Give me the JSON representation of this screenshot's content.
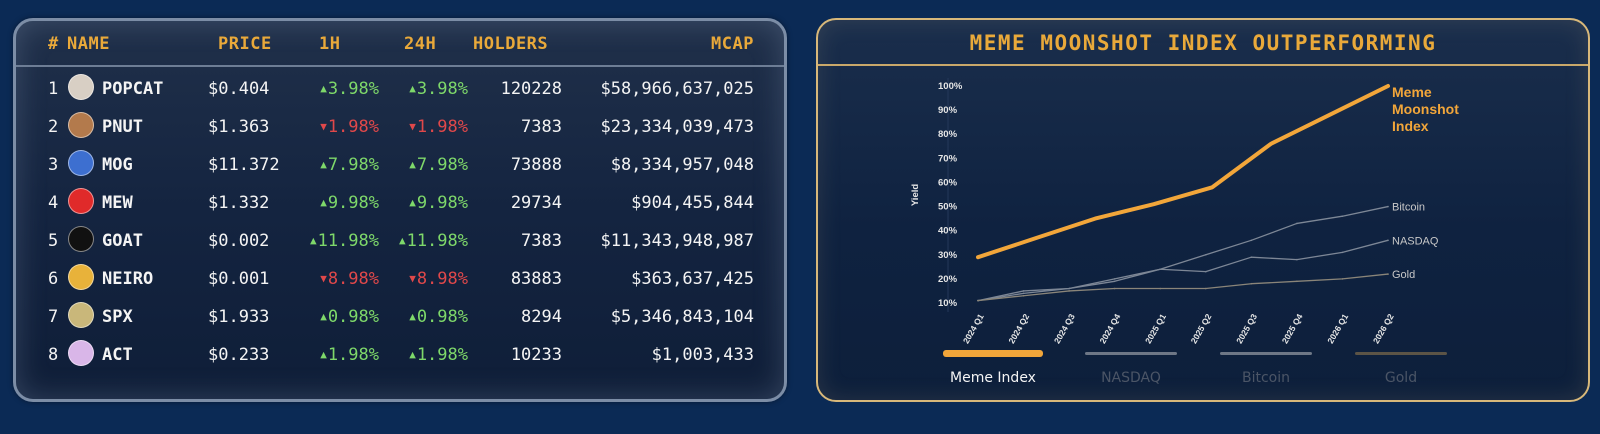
{
  "table": {
    "headers": {
      "rank": "#",
      "name": "NAME",
      "price": "PRICE",
      "h1": "1H",
      "h24": "24H",
      "holders": "HOLDERS",
      "mcap": "MCAP"
    },
    "rows": [
      {
        "rank": "1",
        "name": "POPCAT",
        "price": "$0.404",
        "h1": "3.98%",
        "h1_dir": "up",
        "h24": "3.98%",
        "h24_dir": "up",
        "holders": "120228",
        "mcap": "$58,966,637,025",
        "avatar": "popcat-avatar",
        "avatar_color": "#d8cfc4"
      },
      {
        "rank": "2",
        "name": "PNUT",
        "price": "$1.363",
        "h1": "1.98%",
        "h1_dir": "down",
        "h24": "1.98%",
        "h24_dir": "down",
        "holders": "7383",
        "mcap": "$23,334,039,473",
        "avatar": "pnut-avatar",
        "avatar_color": "#b37a4c"
      },
      {
        "rank": "3",
        "name": "MOG",
        "price": "$11.372",
        "h1": "7.98%",
        "h1_dir": "up",
        "h24": "7.98%",
        "h24_dir": "up",
        "holders": "73888",
        "mcap": "$8,334,957,048",
        "avatar": "mog-avatar",
        "avatar_color": "#3d6fd0"
      },
      {
        "rank": "4",
        "name": "MEW",
        "price": "$1.332",
        "h1": "9.98%",
        "h1_dir": "up",
        "h24": "9.98%",
        "h24_dir": "up",
        "holders": "29734",
        "mcap": "$904,455,844",
        "avatar": "mew-avatar",
        "avatar_color": "#e02a2a"
      },
      {
        "rank": "5",
        "name": "GOAT",
        "price": "$0.002",
        "h1": "11.98%",
        "h1_dir": "up",
        "h24": "11.98%",
        "h24_dir": "up",
        "holders": "7383",
        "mcap": "$11,343,948,987",
        "avatar": "goat-avatar",
        "avatar_color": "#111111"
      },
      {
        "rank": "6",
        "name": "NEIRO",
        "price": "$0.001",
        "h1": "8.98%",
        "h1_dir": "down",
        "h24": "8.98%",
        "h24_dir": "down",
        "holders": "83883",
        "mcap": "$363,637,425",
        "avatar": "neiro-avatar",
        "avatar_color": "#e8b23a"
      },
      {
        "rank": "7",
        "name": "SPX",
        "price": "$1.933",
        "h1": "0.98%",
        "h1_dir": "up",
        "h24": "0.98%",
        "h24_dir": "up",
        "holders": "8294",
        "mcap": "$5,346,843,104",
        "avatar": "spx-avatar",
        "avatar_color": "#c9b77a"
      },
      {
        "rank": "8",
        "name": "ACT",
        "price": "$0.233",
        "h1": "1.98%",
        "h1_dir": "up",
        "h24": "1.98%",
        "h24_dir": "up",
        "holders": "10233",
        "mcap": "$1,003,433",
        "avatar": "act-avatar",
        "avatar_color": "#d9b6e8"
      }
    ]
  },
  "colors": {
    "accent": "#e9a93a",
    "up": "#7ed86a",
    "down": "#e0484a"
  },
  "chart_panel": {
    "title": "MEME MOONSHOT INDEX OUTPERFORMING"
  },
  "legend": [
    {
      "label": "Meme Index",
      "color": "#f2a63a",
      "label_color": "#f4f4f4"
    },
    {
      "label": "NASDAQ",
      "color": "#6e7786",
      "label_color": "#4b5566"
    },
    {
      "label": "Bitcoin",
      "color": "#6e7786",
      "label_color": "#4b5566"
    },
    {
      "label": "Gold",
      "color": "#5c5446",
      "label_color": "#4b5566"
    }
  ],
  "chart_data": {
    "type": "line",
    "ylabel": "Yield",
    "xlabel": "",
    "ylim": [
      10,
      100
    ],
    "y_ticks": [
      "10%",
      "20%",
      "30%",
      "40%",
      "50%",
      "60%",
      "70%",
      "80%",
      "90%",
      "100%"
    ],
    "categories": [
      "2024 Q1",
      "2024 Q2",
      "2024 Q3",
      "2024 Q4",
      "2025 Q1",
      "2025 Q2",
      "2025 Q3",
      "2025 Q4",
      "2026 Q1",
      "2026 Q2"
    ],
    "series": [
      {
        "name": "Meme Moonshot Index",
        "color": "#f2a63a",
        "values": [
          29,
          37,
          45,
          51,
          58,
          76,
          88,
          100,
          100,
          100
        ],
        "x_end": 1.0,
        "label_lines": [
          "Meme",
          "Moonshot",
          "Index"
        ]
      },
      {
        "name": "Bitcoin",
        "color": "#7d8796",
        "values": [
          11,
          15,
          16,
          19,
          24,
          30,
          36,
          43,
          46,
          50
        ],
        "label_lines": [
          "Bitcoin"
        ]
      },
      {
        "name": "NASDAQ",
        "color": "#7d8796",
        "values": [
          11,
          14,
          16,
          20,
          24,
          23,
          29,
          28,
          31,
          36
        ],
        "label_lines": [
          "NASDAQ"
        ]
      },
      {
        "name": "Gold",
        "color": "#8a8579",
        "values": [
          11,
          13,
          15,
          16,
          16,
          16,
          18,
          19,
          20,
          22
        ],
        "label_lines": [
          "Gold"
        ]
      }
    ]
  }
}
